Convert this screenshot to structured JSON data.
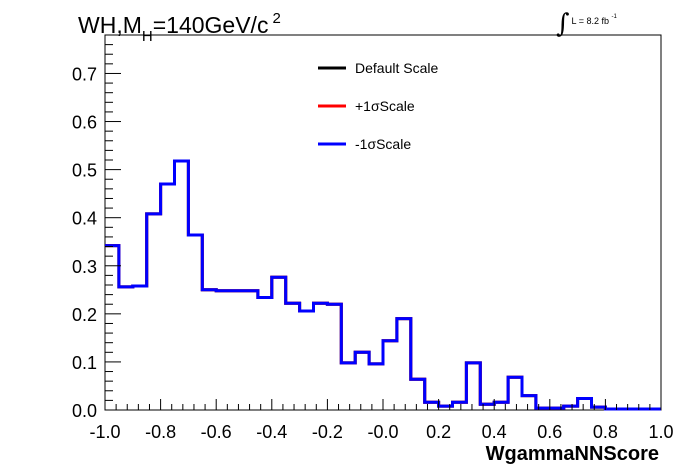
{
  "chart_data": {
    "type": "line",
    "title": "WH,M",
    "title_subscript": "H",
    "title_rest": "=140GeV/c",
    "title_superscript": "2",
    "lumi_text": "L = 8.2 fb",
    "lumi_superscript": "-1",
    "xlabel": "WgammaNNScore",
    "ylabel": "",
    "xlim": [
      -1.0,
      1.0
    ],
    "ylim": [
      0.0,
      0.78
    ],
    "x_ticks": [
      "-1.0",
      "-0.8",
      "-0.6",
      "-0.4",
      "-0.2",
      "-0.0",
      "0.2",
      "0.4",
      "0.6",
      "0.8",
      "1.0"
    ],
    "x_tick_values": [
      -1.0,
      -0.8,
      -0.6,
      -0.4,
      -0.2,
      0.0,
      0.2,
      0.4,
      0.6,
      0.8,
      1.0
    ],
    "y_ticks": [
      "0.0",
      "0.1",
      "0.2",
      "0.3",
      "0.4",
      "0.5",
      "0.6",
      "0.7"
    ],
    "y_tick_values": [
      0.0,
      0.1,
      0.2,
      0.3,
      0.4,
      0.5,
      0.6,
      0.7
    ],
    "grid": false,
    "legend_position": "top-center",
    "bin_edges": [
      -1.0,
      -0.95,
      -0.9,
      -0.85,
      -0.8,
      -0.75,
      -0.7,
      -0.65,
      -0.6,
      -0.55,
      -0.5,
      -0.45,
      -0.4,
      -0.35,
      -0.3,
      -0.25,
      -0.2,
      -0.15,
      -0.1,
      -0.05,
      0.0,
      0.05,
      0.1,
      0.15,
      0.2,
      0.25,
      0.3,
      0.35,
      0.4,
      0.45,
      0.5,
      0.55,
      0.6,
      0.65,
      0.7,
      0.75,
      0.8,
      0.85,
      0.9,
      0.95,
      1.0
    ],
    "series": [
      {
        "name": "Default Scale",
        "color": "#000000",
        "values": [
          0.342,
          0.256,
          0.258,
          0.408,
          0.47,
          0.518,
          0.364,
          0.25,
          0.248,
          0.248,
          0.248,
          0.234,
          0.276,
          0.222,
          0.206,
          0.222,
          0.22,
          0.098,
          0.12,
          0.096,
          0.144,
          0.19,
          0.064,
          0.016,
          0.008,
          0.016,
          0.098,
          0.012,
          0.016,
          0.068,
          0.03,
          0.004,
          0.004,
          0.008,
          0.024,
          0.006,
          0.002,
          0.002,
          0.002,
          0.002
        ]
      },
      {
        "name": "+1σScale",
        "color": "#ff0000",
        "values": [
          0.342,
          0.256,
          0.258,
          0.408,
          0.47,
          0.518,
          0.364,
          0.25,
          0.248,
          0.248,
          0.248,
          0.234,
          0.276,
          0.222,
          0.206,
          0.222,
          0.22,
          0.098,
          0.12,
          0.096,
          0.144,
          0.19,
          0.064,
          0.016,
          0.008,
          0.016,
          0.098,
          0.012,
          0.016,
          0.068,
          0.03,
          0.004,
          0.004,
          0.008,
          0.024,
          0.006,
          0.002,
          0.002,
          0.002,
          0.002
        ]
      },
      {
        "name": "-1σScale",
        "color": "#0000ff",
        "values": [
          0.342,
          0.256,
          0.258,
          0.408,
          0.47,
          0.518,
          0.364,
          0.25,
          0.248,
          0.248,
          0.248,
          0.234,
          0.276,
          0.222,
          0.206,
          0.222,
          0.22,
          0.098,
          0.12,
          0.096,
          0.144,
          0.19,
          0.064,
          0.016,
          0.008,
          0.016,
          0.098,
          0.012,
          0.016,
          0.068,
          0.03,
          0.004,
          0.004,
          0.008,
          0.024,
          0.006,
          0.002,
          0.002,
          0.002,
          0.002
        ]
      }
    ]
  }
}
